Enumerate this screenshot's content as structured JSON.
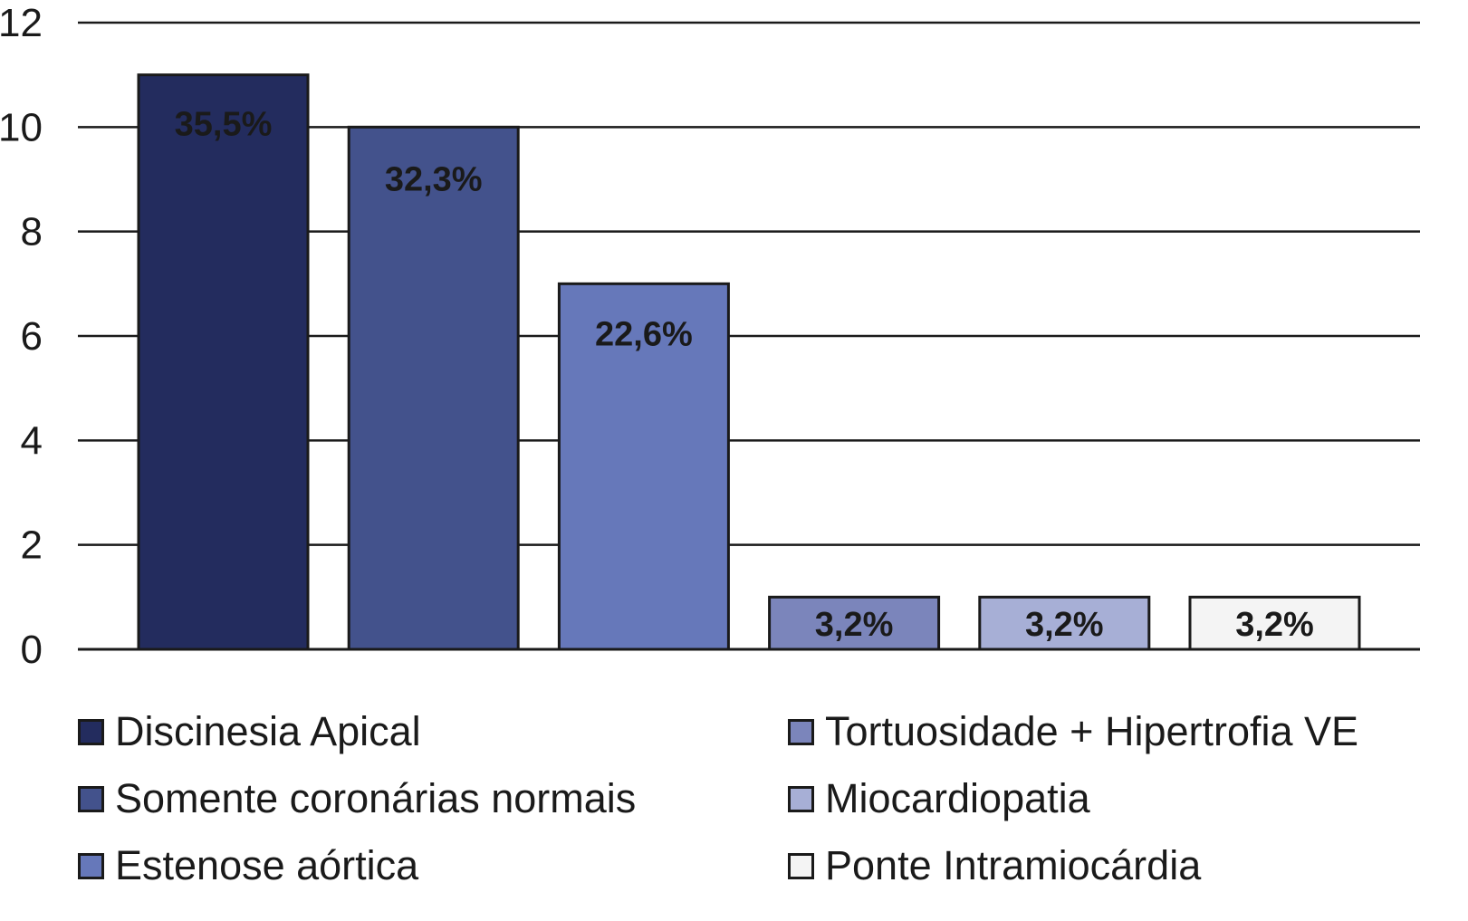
{
  "chart_data": {
    "type": "bar",
    "categories": [
      "Discinesia Apical",
      "Somente coronárias normais",
      "Estenose aórtica",
      "Tortuosidade + Hipertrofia VE",
      "Miocardiopatia",
      "Ponte Intramiocárdia"
    ],
    "values": [
      11,
      10,
      7,
      1,
      1,
      1
    ],
    "data_labels": [
      "35,5%",
      "32,3%",
      "22,6%",
      "3,2%",
      "3,2%",
      "3,2%"
    ],
    "colors": [
      "#232c5e",
      "#43528c",
      "#6678ba",
      "#7b85bb",
      "#a7afd6",
      "#f4f4f4"
    ],
    "ylim": [
      0,
      12
    ],
    "yticks": [
      0,
      2,
      4,
      6,
      8,
      10,
      12
    ],
    "ytick_labels": [
      "0",
      "2",
      "4",
      "6",
      "8",
      "10",
      "12"
    ],
    "grid": true,
    "legend_position": "bottom",
    "title": "",
    "xlabel": "",
    "ylabel": ""
  }
}
